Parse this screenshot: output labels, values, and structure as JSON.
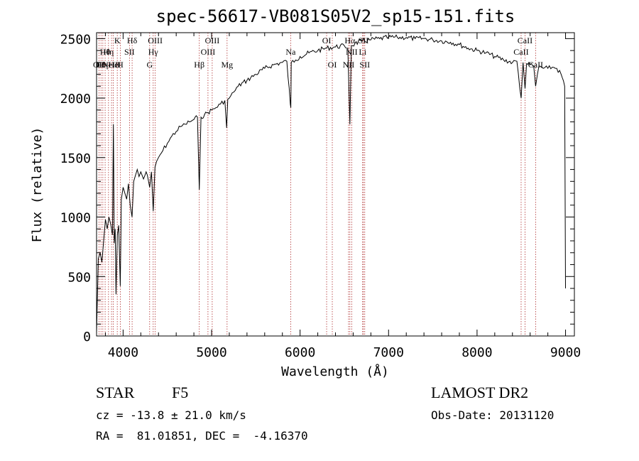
{
  "chart_data": {
    "type": "line",
    "title": "spec-56617-VB081S05V2_sp15-151.fits",
    "xlabel": "Wavelength (Å)",
    "ylabel": "Flux (relative)",
    "xlim": [
      3700,
      9100
    ],
    "ylim": [
      0,
      2550
    ],
    "x_ticks": [
      4000,
      5000,
      6000,
      7000,
      8000,
      9000
    ],
    "x_tick_labels": [
      "4000",
      "5000",
      "6000",
      "7000",
      "8000",
      "9000"
    ],
    "y_ticks": [
      0,
      500,
      1000,
      1500,
      2000,
      2500
    ],
    "y_tick_labels": [
      "0",
      "500",
      "1000",
      "1500",
      "2000",
      "2500"
    ],
    "grid": false,
    "series": [
      {
        "x": [
          3700,
          3720,
          3740,
          3760,
          3780,
          3800,
          3820,
          3840,
          3860,
          3880,
          3890,
          3900,
          3910,
          3920,
          3935,
          3950,
          3968,
          3980,
          4000,
          4020,
          4040,
          4060,
          4080,
          4101,
          4120,
          4140,
          4160,
          4180,
          4200,
          4230,
          4260,
          4300,
          4320,
          4340,
          4360,
          4380,
          4400,
          4450,
          4500,
          4550,
          4600,
          4650,
          4700,
          4750,
          4800,
          4840,
          4861,
          4880,
          4920,
          4960,
          5000,
          5050,
          5100,
          5150,
          5170,
          5183,
          5200,
          5250,
          5300,
          5400,
          5500,
          5600,
          5700,
          5800,
          5850,
          5890,
          5895,
          5900,
          5950,
          6000,
          6100,
          6200,
          6300,
          6400,
          6500,
          6540,
          6563,
          6580,
          6620,
          6700,
          6800,
          6900,
          7000,
          7100,
          7200,
          7300,
          7400,
          7500,
          7600,
          7700,
          7800,
          7900,
          8000,
          8100,
          8200,
          8300,
          8400,
          8450,
          8498,
          8520,
          8542,
          8560,
          8600,
          8640,
          8662,
          8700,
          8750,
          8800,
          8850,
          8900,
          8950,
          8990,
          9000
        ],
        "y": [
          30,
          650,
          700,
          620,
          800,
          980,
          900,
          1000,
          940,
          850,
          1780,
          780,
          900,
          350,
          850,
          930,
          420,
          1150,
          1250,
          1200,
          1150,
          1280,
          1100,
          1000,
          1300,
          1350,
          1400,
          1340,
          1380,
          1320,
          1380,
          1250,
          1380,
          1050,
          1420,
          1470,
          1500,
          1560,
          1620,
          1680,
          1720,
          1760,
          1780,
          1800,
          1820,
          1840,
          1230,
          1840,
          1860,
          1880,
          1900,
          1920,
          1950,
          1980,
          1750,
          1990,
          2000,
          2050,
          2100,
          2150,
          2200,
          2250,
          2280,
          2300,
          2310,
          1950,
          1920,
          2300,
          2320,
          2350,
          2380,
          2400,
          2420,
          2430,
          2440,
          2420,
          1780,
          2440,
          2460,
          2480,
          2490,
          2500,
          2510,
          2510,
          2510,
          2500,
          2500,
          2490,
          2480,
          2470,
          2450,
          2420,
          2400,
          2380,
          2350,
          2320,
          2300,
          2310,
          2000,
          2300,
          2080,
          2290,
          2280,
          2270,
          2100,
          2270,
          2250,
          2250,
          2260,
          2250,
          2200,
          2100,
          400
        ]
      }
    ],
    "lines": [
      {
        "x": 3727,
        "row": 0,
        "label": "OII"
      },
      {
        "x": 3750,
        "row": 0,
        "label": "Hθ"
      },
      {
        "x": 3771,
        "row": 0,
        "label": "Hη"
      },
      {
        "x": 3797,
        "row": 1,
        "label": "Hθ"
      },
      {
        "x": 3835,
        "row": 1,
        "label": "Hη"
      },
      {
        "x": 3869,
        "row": 0,
        "label": "NeIII"
      },
      {
        "x": 3889,
        "row": 0,
        "label": "He"
      },
      {
        "x": 3934,
        "row": 2,
        "label": "K"
      },
      {
        "x": 3968,
        "row": 0,
        "label": "H"
      },
      {
        "x": 4072,
        "row": 1,
        "label": "SII"
      },
      {
        "x": 4102,
        "row": 2,
        "label": "Hδ"
      },
      {
        "x": 4300,
        "row": 0,
        "label": "G"
      },
      {
        "x": 4340,
        "row": 1,
        "label": "Hγ"
      },
      {
        "x": 4363,
        "row": 2,
        "label": "OIII"
      },
      {
        "x": 4861,
        "row": 0,
        "label": "Hβ"
      },
      {
        "x": 4959,
        "row": 1,
        "label": "OIII"
      },
      {
        "x": 5007,
        "row": 2,
        "label": "OIII"
      },
      {
        "x": 5175,
        "row": 0,
        "label": "Mg"
      },
      {
        "x": 5894,
        "row": 1,
        "label": "Na"
      },
      {
        "x": 6300,
        "row": 2,
        "label": "OI"
      },
      {
        "x": 6364,
        "row": 0,
        "label": "OI"
      },
      {
        "x": 6548,
        "row": 0,
        "label": "NII"
      },
      {
        "x": 6563,
        "row": 2,
        "label": "Hα"
      },
      {
        "x": 6583,
        "row": 1,
        "label": "NII"
      },
      {
        "x": 6707,
        "row": 1,
        "label": "Li"
      },
      {
        "x": 6716,
        "row": 2,
        "label": "SII"
      },
      {
        "x": 6731,
        "row": 0,
        "label": "SII"
      },
      {
        "x": 8498,
        "row": 1,
        "label": "CaII"
      },
      {
        "x": 8542,
        "row": 2,
        "label": "CaII"
      },
      {
        "x": 8662,
        "row": 0,
        "label": "CaII"
      }
    ]
  },
  "info": {
    "object_class": "STAR",
    "subclass": "F5",
    "survey": "LAMOST DR2",
    "redshift": "cz = -13.8 ± 21.0 km/s",
    "obs_date": "Obs-Date: 20131120",
    "coords": "RA =  81.01851, DEC =  -4.16370"
  },
  "colors": {
    "spectrum": "#000000",
    "line_markers": "#b03030",
    "axes": "#000000"
  }
}
